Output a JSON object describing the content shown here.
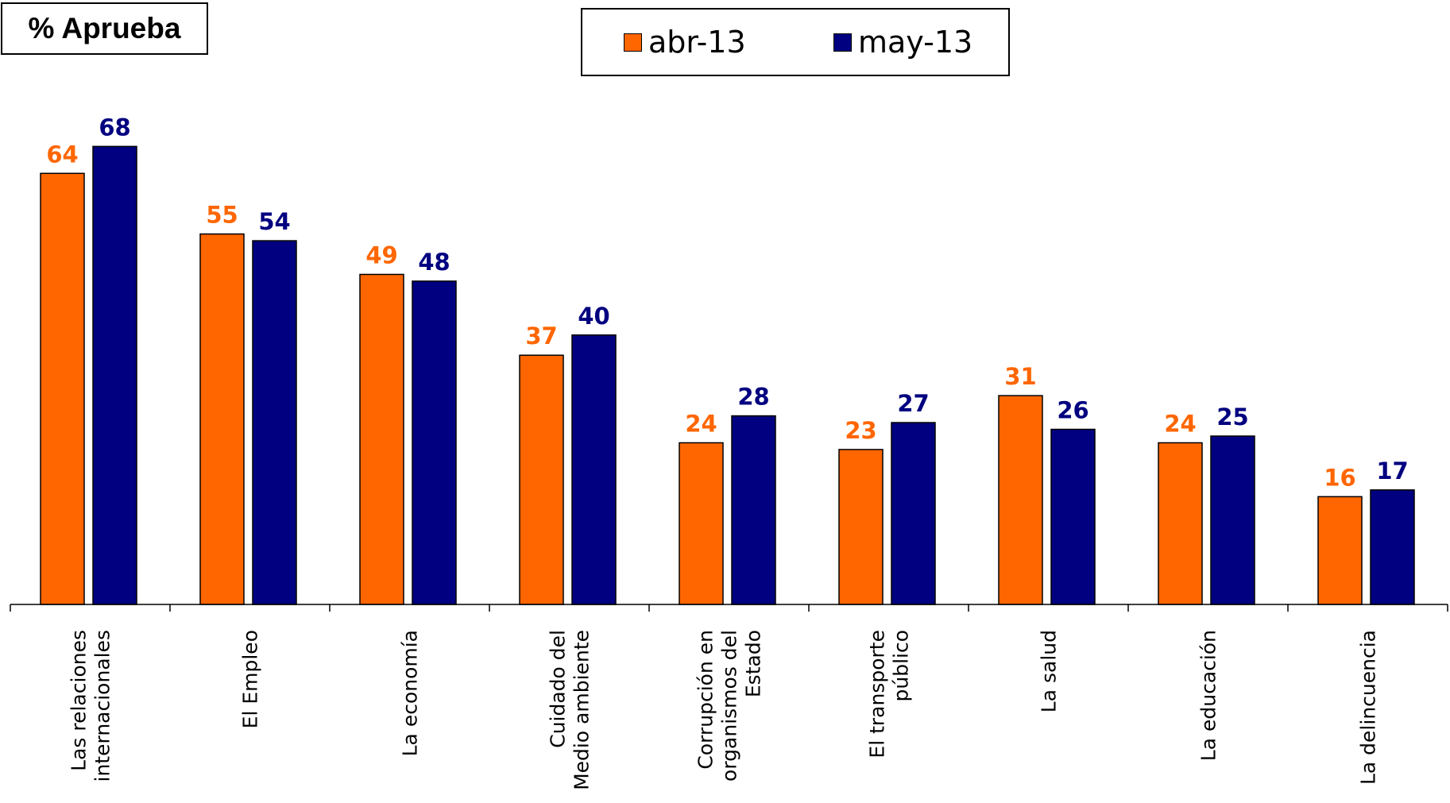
{
  "title": "% Aprueba",
  "colors": {
    "abr": "#FF6600",
    "may": "#000080"
  },
  "chart_data": {
    "type": "bar",
    "title": "% Aprueba",
    "categories": [
      [
        "Las relaciones",
        "internacionales"
      ],
      [
        "El Empleo"
      ],
      [
        "La economía"
      ],
      [
        "Cuidado del",
        "Medio ambiente"
      ],
      [
        "Corrupción en",
        "organismos del",
        "Estado"
      ],
      [
        "El transporte",
        "público"
      ],
      [
        "La salud"
      ],
      [
        "La educación"
      ],
      [
        "La delincuencia"
      ]
    ],
    "series": [
      {
        "name": "abr-13",
        "color": "#FF6600",
        "values": [
          64,
          55,
          49,
          37,
          24,
          23,
          31,
          24,
          16
        ]
      },
      {
        "name": "may-13",
        "color": "#000080",
        "values": [
          68,
          54,
          48,
          40,
          28,
          27,
          26,
          25,
          17
        ]
      }
    ],
    "ylim": [
      0,
      70
    ],
    "legend": "top-center",
    "grid": false,
    "data_labels": true
  }
}
